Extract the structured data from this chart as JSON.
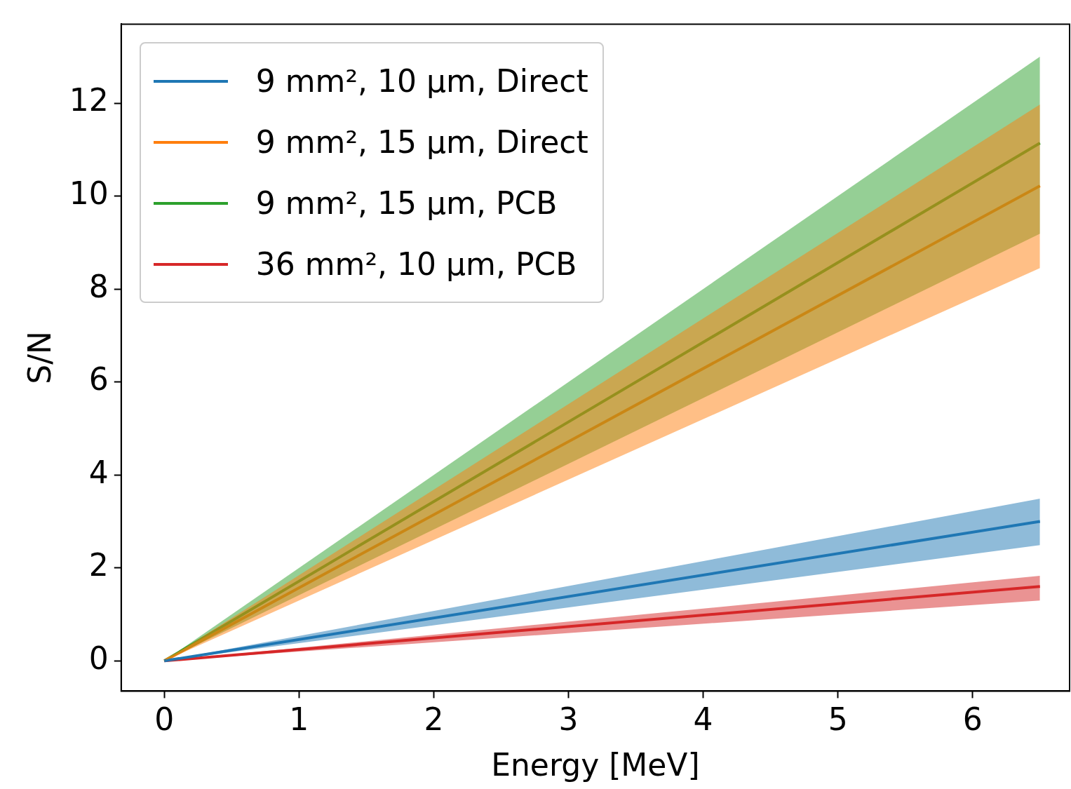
{
  "chart_data": {
    "type": "line",
    "xlabel": "Energy [MeV]",
    "ylabel": "S/N",
    "x": [
      0,
      6.5
    ],
    "series": [
      {
        "name": "9 mm², 10 μm, Direct",
        "color": "#1f77b4",
        "values": [
          0,
          3.0
        ],
        "lower": [
          0,
          2.49
        ],
        "upper": [
          0,
          3.49
        ]
      },
      {
        "name": "9 mm², 15 μm, Direct",
        "color": "#ff7f0e",
        "values": [
          0,
          10.22
        ],
        "lower": [
          0,
          8.45
        ],
        "upper": [
          0,
          11.97
        ]
      },
      {
        "name": "9 mm², 15 μm, PCB",
        "color": "#2ca02c",
        "values": [
          0,
          11.14
        ],
        "lower": [
          0,
          9.19
        ],
        "upper": [
          0,
          13.0
        ]
      },
      {
        "name": "36 mm², 10 μm, PCB",
        "color": "#d62728",
        "values": [
          0,
          1.6
        ],
        "lower": [
          0,
          1.3
        ],
        "upper": [
          0,
          1.83
        ]
      }
    ],
    "xlim": [
      -0.32,
      6.72
    ],
    "ylim": [
      -0.65,
      13.7
    ],
    "xticks": [
      0,
      1,
      2,
      3,
      4,
      5,
      6
    ],
    "yticks": [
      0,
      2,
      4,
      6,
      8,
      10,
      12
    ],
    "grid": false,
    "legend": "top left",
    "marker": "none",
    "line_style": "solid"
  }
}
